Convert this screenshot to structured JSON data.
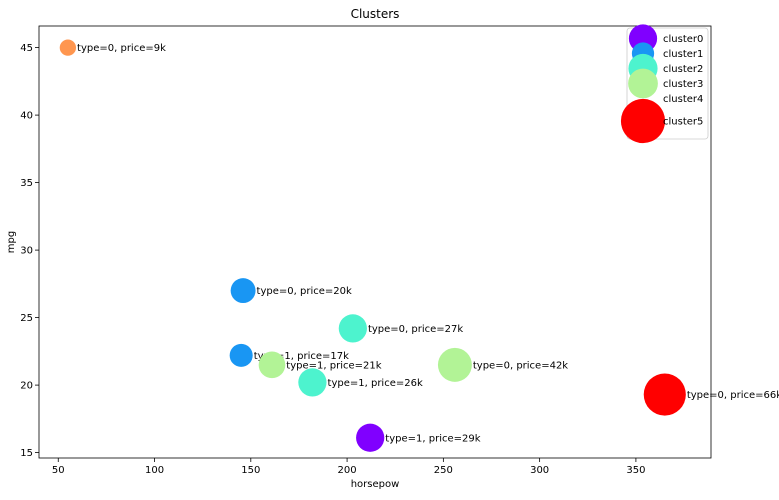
{
  "chart_data": {
    "type": "scatter",
    "title": "Clusters",
    "xlabel": "horsepow",
    "ylabel": "mpg",
    "xlim": [
      40,
      389
    ],
    "ylim": [
      14.6,
      46.6
    ],
    "xticks": [
      50,
      100,
      150,
      200,
      250,
      300,
      350
    ],
    "yticks": [
      15,
      20,
      25,
      30,
      35,
      40,
      45
    ],
    "grid": false,
    "legend_position": "top-right",
    "legend": [
      {
        "name": "cluster0",
        "color": "#8000ff",
        "size": 450
      },
      {
        "name": "cluster1",
        "color": "#1996f3",
        "size": 280
      },
      {
        "name": "cluster2",
        "color": "#4df3ce",
        "size": 480
      },
      {
        "name": "cluster3",
        "color": "#b2f396",
        "size": 500
      },
      {
        "name": "cluster4",
        "color": "#ff964f",
        "size": 0
      },
      {
        "name": "cluster5",
        "color": "#ff0000",
        "size": 1100
      }
    ],
    "points": [
      {
        "x": 55,
        "y": 45.0,
        "size": 150,
        "color": "#ff964f",
        "label": "type=0, price=9k"
      },
      {
        "x": 146,
        "y": 27.0,
        "size": 350,
        "color": "#1996f3",
        "label": "type=0, price=20k"
      },
      {
        "x": 145,
        "y": 22.2,
        "size": 300,
        "color": "#1996f3",
        "label": "type=1, price=17k"
      },
      {
        "x": 203,
        "y": 24.2,
        "size": 450,
        "color": "#4df3ce",
        "label": "type=0, price=27k"
      },
      {
        "x": 182,
        "y": 20.2,
        "size": 450,
        "color": "#4df3ce",
        "label": "type=1, price=26k"
      },
      {
        "x": 161,
        "y": 21.5,
        "size": 400,
        "color": "#b2f396",
        "label": "type=1, price=21k"
      },
      {
        "x": 256,
        "y": 21.5,
        "size": 650,
        "color": "#b2f396",
        "label": "type=0, price=42k"
      },
      {
        "x": 212,
        "y": 16.1,
        "size": 450,
        "color": "#8000ff",
        "label": "type=1, price=29k"
      },
      {
        "x": 365,
        "y": 19.3,
        "size": 1000,
        "color": "#ff0000",
        "label": "type=0, price=66k"
      }
    ]
  }
}
